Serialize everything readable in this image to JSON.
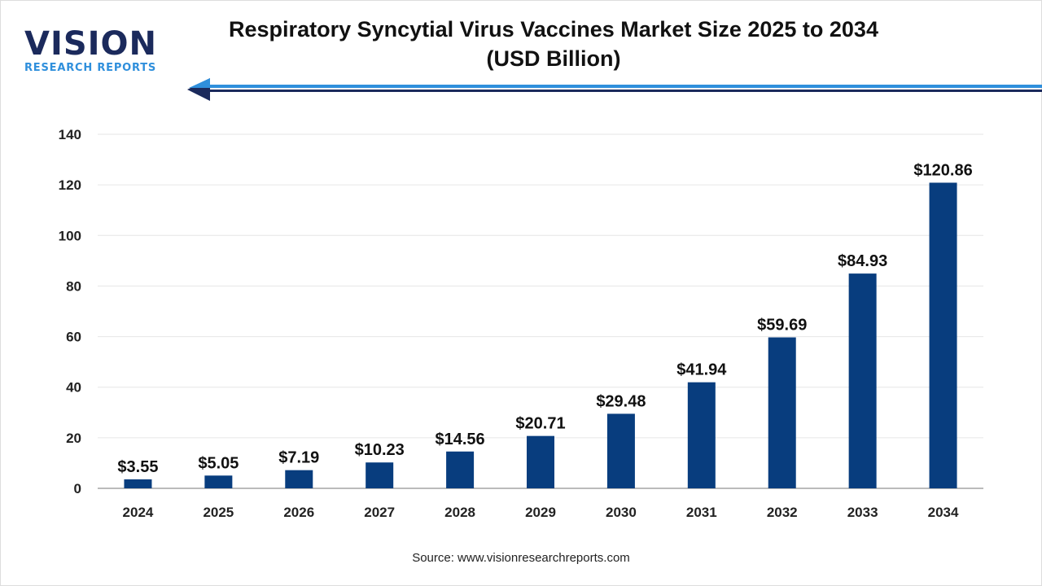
{
  "logo": {
    "main": "VISION",
    "sub": "RESEARCH REPORTS"
  },
  "title_line1": "Respiratory Syncytial Virus Vaccines Market Size 2025 to 2034",
  "title_line2": "(USD Billion)",
  "source": "Source: www.visionresearchreports.com",
  "colors": {
    "bar": "#083d7e",
    "arrow_light": "#2f8fdc",
    "arrow_dark": "#1b2a5c"
  },
  "chart_data": {
    "type": "bar",
    "title": "Respiratory Syncytial Virus Vaccines Market Size 2025 to 2034 (USD Billion)",
    "categories": [
      "2024",
      "2025",
      "2026",
      "2027",
      "2028",
      "2029",
      "2030",
      "2031",
      "2032",
      "2033",
      "2034"
    ],
    "values": [
      3.55,
      5.05,
      7.19,
      10.23,
      14.56,
      20.71,
      29.48,
      41.94,
      59.69,
      84.93,
      120.86
    ],
    "data_labels": [
      "$3.55",
      "$5.05",
      "$7.19",
      "$10.23",
      "$14.56",
      "$20.71",
      "$29.48",
      "$41.94",
      "$59.69",
      "$84.93",
      "$120.86"
    ],
    "yticks": [
      0,
      20,
      40,
      60,
      80,
      100,
      120,
      140
    ],
    "ylim": [
      0,
      140
    ],
    "grid": true,
    "xlabel": "",
    "ylabel": ""
  }
}
